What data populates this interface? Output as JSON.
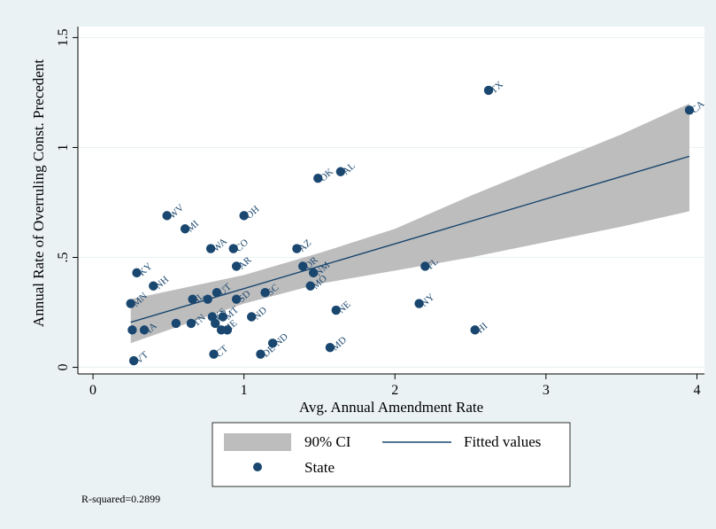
{
  "chart_data": {
    "type": "scatter",
    "xlabel": "Avg. Annual Amendment Rate",
    "ylabel": "Annual Rate of Overruling Const. Precedent",
    "xlim": [
      -0.1,
      4.05
    ],
    "ylim": [
      -0.03,
      1.55
    ],
    "xticks": [
      0,
      1,
      2,
      3,
      4
    ],
    "yticks": [
      0,
      0.5,
      1,
      1.5
    ],
    "ytick_labels": [
      "0",
      ".5",
      "1",
      "1.5"
    ],
    "grid": true,
    "legend": {
      "position": "bottom",
      "ci_label": "90% CI",
      "fit_label": "Fitted values",
      "state_label": "State"
    },
    "note": "R-squared=0.2899",
    "colors": {
      "marker": "#1a476f",
      "fit_line": "#1a476f",
      "ci_band": "#bdbdbd",
      "background": "#eaf2f3",
      "plot_background": "#ffffff",
      "grid": "#eaf2f3"
    },
    "fitted_line": {
      "x": [
        0.25,
        3.95
      ],
      "y": [
        0.205,
        0.96
      ]
    },
    "ci_band": {
      "x": [
        0.25,
        1.0,
        1.5,
        2.0,
        2.5,
        3.0,
        3.5,
        3.95
      ],
      "lower": [
        0.11,
        0.29,
        0.38,
        0.44,
        0.5,
        0.57,
        0.64,
        0.71
      ],
      "upper": [
        0.31,
        0.42,
        0.52,
        0.63,
        0.78,
        0.92,
        1.06,
        1.2
      ]
    },
    "points": [
      {
        "label": "TX",
        "x": 2.62,
        "y": 1.26
      },
      {
        "label": "CA",
        "x": 3.95,
        "y": 1.17
      },
      {
        "label": "OK",
        "x": 1.49,
        "y": 0.86
      },
      {
        "label": "AL",
        "x": 1.64,
        "y": 0.89
      },
      {
        "label": "WV",
        "x": 0.49,
        "y": 0.69
      },
      {
        "label": "OH",
        "x": 1.0,
        "y": 0.69
      },
      {
        "label": "MI",
        "x": 0.61,
        "y": 0.63
      },
      {
        "label": "WA",
        "x": 0.78,
        "y": 0.54
      },
      {
        "label": "CO",
        "x": 0.93,
        "y": 0.54
      },
      {
        "label": "AZ",
        "x": 1.35,
        "y": 0.54
      },
      {
        "label": "AR",
        "x": 0.95,
        "y": 0.46
      },
      {
        "label": "OR",
        "x": 1.39,
        "y": 0.46
      },
      {
        "label": "NM",
        "x": 1.46,
        "y": 0.43
      },
      {
        "label": "FL",
        "x": 2.2,
        "y": 0.46
      },
      {
        "label": "KY",
        "x": 0.29,
        "y": 0.43
      },
      {
        "label": "NH",
        "x": 0.4,
        "y": 0.37
      },
      {
        "label": "MO",
        "x": 1.44,
        "y": 0.37
      },
      {
        "label": "SC",
        "x": 1.14,
        "y": 0.34
      },
      {
        "label": "SD",
        "x": 0.95,
        "y": 0.31
      },
      {
        "label": "NY",
        "x": 2.16,
        "y": 0.29
      },
      {
        "label": "MN",
        "x": 0.25,
        "y": 0.29
      },
      {
        "label": "NE",
        "x": 1.61,
        "y": 0.26
      },
      {
        "label": "ND",
        "x": 1.05,
        "y": 0.23
      },
      {
        "label": "HI",
        "x": 2.53,
        "y": 0.17
      },
      {
        "label": "MD",
        "x": 1.57,
        "y": 0.09
      },
      {
        "label": "CT",
        "x": 0.8,
        "y": 0.06
      },
      {
        "label": "DE",
        "x": 1.11,
        "y": 0.06
      },
      {
        "label": "ND",
        "x": 1.19,
        "y": 0.11
      },
      {
        "label": "VT",
        "x": 0.27,
        "y": 0.03
      },
      {
        "label": "IA",
        "x": 0.34,
        "y": 0.17
      },
      {
        "label": "",
        "x": 0.26,
        "y": 0.17
      },
      {
        "label": "",
        "x": 0.55,
        "y": 0.2
      },
      {
        "label": "TN",
        "x": 0.65,
        "y": 0.2
      },
      {
        "label": "IL",
        "x": 0.66,
        "y": 0.31
      },
      {
        "label": "",
        "x": 0.76,
        "y": 0.31
      },
      {
        "label": "UT",
        "x": 0.82,
        "y": 0.34
      },
      {
        "label": "KS",
        "x": 0.79,
        "y": 0.23
      },
      {
        "label": "",
        "x": 0.81,
        "y": 0.2
      },
      {
        "label": "ME",
        "x": 0.85,
        "y": 0.17
      },
      {
        "label": "MT",
        "x": 0.86,
        "y": 0.23
      },
      {
        "label": "",
        "x": 0.89,
        "y": 0.17
      }
    ]
  }
}
